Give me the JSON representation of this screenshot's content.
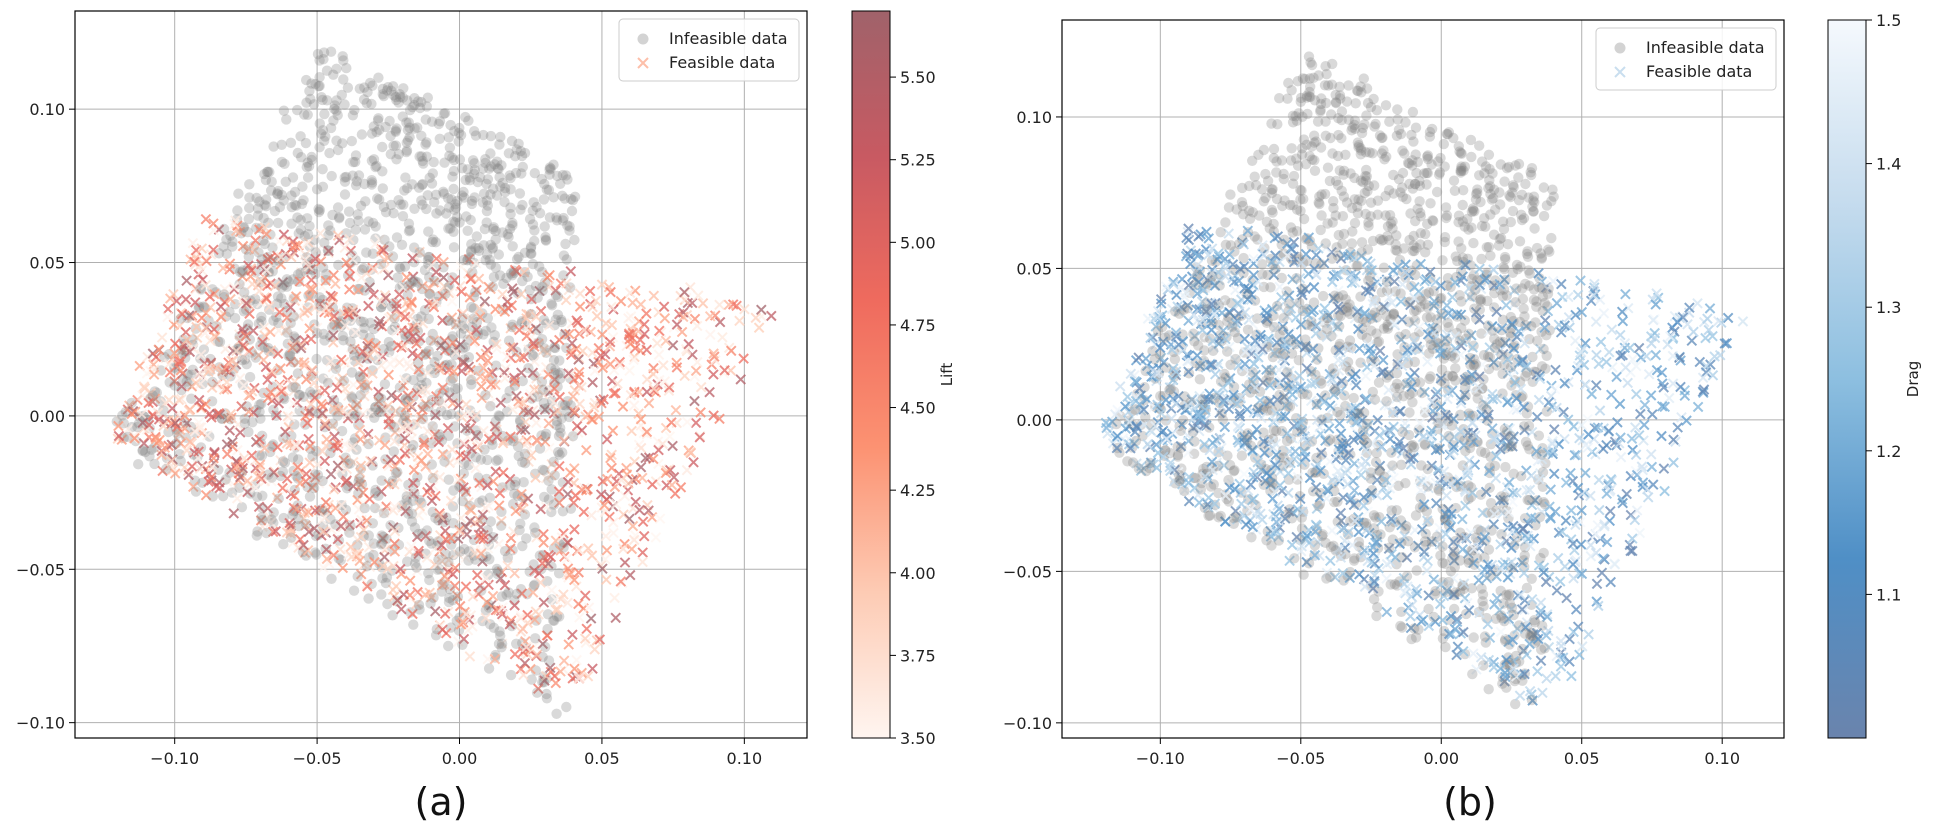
{
  "chart_data": [
    {
      "type": "scatter",
      "panel_label": "(a)",
      "xlim": [
        -0.135,
        0.122
      ],
      "ylim": [
        -0.105,
        0.132
      ],
      "xticks": [
        -0.1,
        -0.05,
        0.0,
        0.05,
        0.1
      ],
      "xtick_labels": [
        "−0.10",
        "−0.05",
        "0.00",
        "0.05",
        "0.10"
      ],
      "yticks": [
        -0.1,
        -0.05,
        0.0,
        0.05,
        0.1
      ],
      "ytick_labels": [
        "−0.10",
        "−0.05",
        "0.00",
        "0.05",
        "0.10"
      ],
      "grid": true,
      "legend_position": "top-right",
      "series": [
        {
          "name": "Infeasible data",
          "marker": "circle",
          "color": "#808080",
          "region": {
            "corners": [
              [
                -0.122,
                -0.008
              ],
              [
                -0.048,
                0.121
              ],
              [
                0.04,
                0.079
              ],
              [
                0.036,
                -0.098
              ]
            ]
          }
        },
        {
          "name": "Feasible data",
          "marker": "x",
          "colormap": "Reds",
          "color_key": "Lift",
          "region": {
            "corners": [
              [
                -0.122,
                -0.008
              ],
              [
                -0.09,
                0.065
              ],
              [
                0.11,
                0.036
              ],
              [
                0.04,
                -0.096
              ]
            ]
          }
        }
      ],
      "colorbar": {
        "label": "Lift",
        "range": [
          3.5,
          5.7
        ],
        "ticks": [
          3.5,
          3.75,
          4.0,
          4.25,
          4.5,
          4.75,
          5.0,
          5.25,
          5.5
        ],
        "tick_labels": [
          "3.50",
          "3.75",
          "4.00",
          "4.25",
          "4.50",
          "4.75",
          "5.00",
          "5.25",
          "5.50"
        ],
        "colors": [
          "#fff5f0",
          "#fdcbb4",
          "#fc9272",
          "#ef6b5e",
          "#c85a62",
          "#a0626a"
        ]
      }
    },
    {
      "type": "scatter",
      "panel_label": "(b)",
      "xlim": [
        -0.135,
        0.122
      ],
      "ylim": [
        -0.105,
        0.132
      ],
      "xticks": [
        -0.1,
        -0.05,
        0.0,
        0.05,
        0.1
      ],
      "xtick_labels": [
        "−0.10",
        "−0.05",
        "0.00",
        "0.05",
        "0.10"
      ],
      "yticks": [
        -0.1,
        -0.05,
        0.0,
        0.05,
        0.1
      ],
      "ytick_labels": [
        "−0.10",
        "−0.05",
        "0.00",
        "0.05",
        "0.10"
      ],
      "grid": true,
      "legend_position": "top-right",
      "series": [
        {
          "name": "Infeasible data",
          "marker": "circle",
          "color": "#808080",
          "region": {
            "corners": [
              [
                -0.122,
                -0.008
              ],
              [
                -0.048,
                0.121
              ],
              [
                0.04,
                0.079
              ],
              [
                0.036,
                -0.098
              ]
            ]
          }
        },
        {
          "name": "Feasible data",
          "marker": "x",
          "colormap": "Blues",
          "color_key": "Drag",
          "region": {
            "corners": [
              [
                -0.122,
                -0.008
              ],
              [
                -0.09,
                0.065
              ],
              [
                0.11,
                0.036
              ],
              [
                0.04,
                -0.096
              ]
            ]
          }
        }
      ],
      "colorbar": {
        "label": "Drag",
        "range": [
          1.0,
          1.5
        ],
        "ticks": [
          1.1,
          1.2,
          1.3,
          1.4,
          1.5
        ],
        "tick_labels": [
          "1.1",
          "1.2",
          "1.3",
          "1.4",
          "1.5"
        ],
        "colors": [
          "#6a84ad",
          "#4f8fc6",
          "#8dbfe0",
          "#c6dcee",
          "#f5f9fd"
        ]
      }
    }
  ]
}
